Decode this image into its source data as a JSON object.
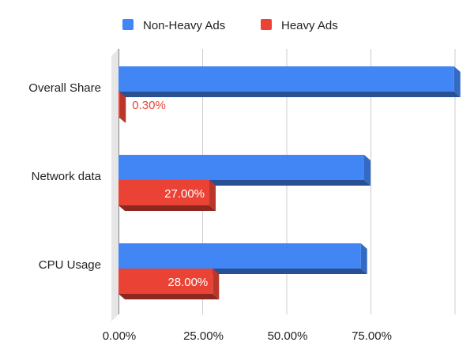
{
  "chart_data": {
    "type": "bar",
    "orientation": "horizontal",
    "style": "3d",
    "categories": [
      "Overall Share",
      "Network data",
      "CPU Usage"
    ],
    "series": [
      {
        "name": "Non-Heavy Ads",
        "color": "#4285f4",
        "values": [
          99.7,
          73.0,
          72.0
        ],
        "labels": [
          "",
          "",
          ""
        ]
      },
      {
        "name": "Heavy Ads",
        "color": "#ea4335",
        "values": [
          0.3,
          27.0,
          28.0
        ],
        "labels": [
          "0.30%",
          "27.00%",
          "28.00%"
        ]
      }
    ],
    "x_ticks": [
      "0.00%",
      "25.00%",
      "50.00%",
      "75.00%"
    ],
    "x_tick_values": [
      0,
      25,
      50,
      75
    ],
    "xlim": [
      0,
      100
    ],
    "grid": true,
    "legend_position": "top",
    "label_colors": {
      "outside": "#ea4335",
      "inside": "#ffffff"
    }
  }
}
